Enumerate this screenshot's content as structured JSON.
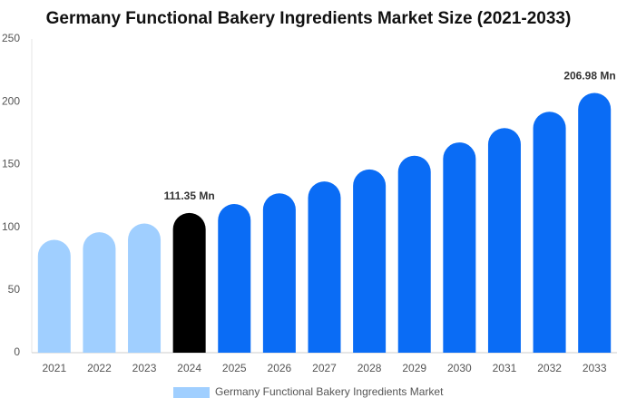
{
  "chart_data": {
    "type": "bar",
    "title": "Germany Functional Bakery Ingredients Market Size (2021-2033)",
    "categories": [
      "2021",
      "2022",
      "2023",
      "2024",
      "2025",
      "2026",
      "2027",
      "2028",
      "2029",
      "2030",
      "2031",
      "2032",
      "2033"
    ],
    "series": [
      {
        "name": "Germany Functional Bakery Ingredients Market",
        "color": "#a0cfff",
        "values": [
          90,
          96,
          103,
          111.35,
          118.5,
          127,
          136.5,
          146,
          157,
          167.6,
          179,
          192,
          206.98
        ],
        "value_labels": [
          null,
          null,
          null,
          "111.35 Mn",
          null,
          null,
          null,
          null,
          null,
          null,
          null,
          null,
          "206.98 Mn"
        ],
        "colors": [
          "#a0cfff",
          "#a0cfff",
          "#a0cfff",
          "#000000",
          "#0a6cf5",
          "#0a6cf5",
          "#0a6cf5",
          "#0a6cf5",
          "#0a6cf5",
          "#0a6cf5",
          "#0a6cf5",
          "#0a6cf5",
          "#0a6cf5"
        ]
      }
    ],
    "ylim": [
      0,
      250
    ],
    "yticks": [
      0,
      50,
      100,
      150,
      200,
      250
    ],
    "grid": false,
    "legend": "bottom"
  }
}
